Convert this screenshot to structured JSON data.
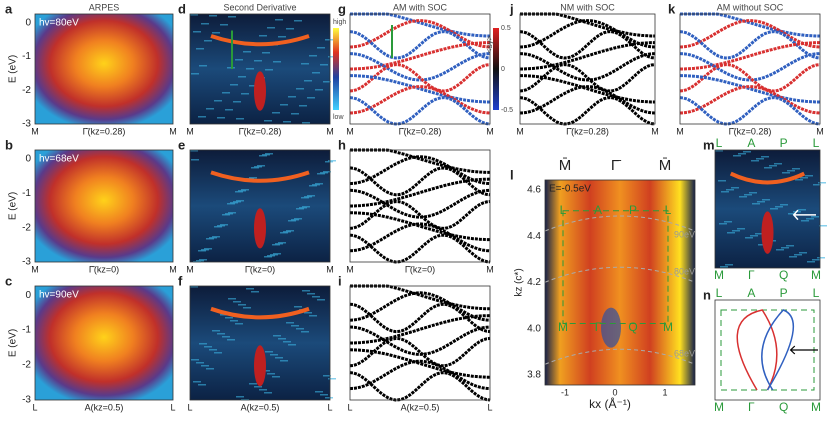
{
  "panels": [
    {
      "letter": "a",
      "title": "ARPES",
      "inset": "hv=80eV",
      "ylabel": "E (eV)",
      "yticks": [
        "0",
        "-1",
        "-2",
        "-3"
      ],
      "xticks": [
        "M",
        "Γ̄(kz=0.28)",
        "M"
      ]
    },
    {
      "letter": "b",
      "inset": "hv=68eV",
      "ylabel": "E (eV)",
      "yticks": [
        "0",
        "-1",
        "-2",
        "-3"
      ],
      "xticks": [
        "M",
        "Γ̄(kz=0)",
        "M"
      ]
    },
    {
      "letter": "c",
      "inset": "hv=90eV",
      "ylabel": "E (eV)",
      "yticks": [
        "0",
        "-1",
        "-2",
        "-3"
      ],
      "xticks": [
        "L",
        "A(kz=0.5)",
        "L"
      ]
    },
    {
      "letter": "d",
      "title": "Second Derivative",
      "colorbar": [
        "high",
        "low"
      ],
      "xticks": [
        "M",
        "Γ̄(kz=0.28)",
        "M"
      ]
    },
    {
      "letter": "e",
      "xticks": [
        "M",
        "Γ̄(kz=0)",
        "M"
      ]
    },
    {
      "letter": "f",
      "xticks": [
        "L",
        "A(kz=0.5)",
        "L"
      ]
    },
    {
      "letter": "g",
      "title": "AM with SOC",
      "colorbar_title": "<sy>",
      "colorbar": [
        "0.5",
        "0",
        "-0.5"
      ],
      "xticks": [
        "M",
        "Γ̄(kz=0.28)",
        "M"
      ]
    },
    {
      "letter": "h",
      "xticks": [
        "M",
        "Γ̄(kz=0)",
        "M"
      ]
    },
    {
      "letter": "i",
      "xticks": [
        "L",
        "A(kz=0.5)",
        "L"
      ]
    },
    {
      "letter": "j",
      "title": "NM with SOC",
      "xticks": [
        "M",
        "Γ̄(kz=0.28)",
        "M"
      ]
    },
    {
      "letter": "k",
      "title": "AM without SOC",
      "xticks": [
        "M",
        "Γ̄(kz=0.28)",
        "M"
      ]
    },
    {
      "letter": "l",
      "top": [
        "M̄",
        "Γ̄",
        "M̄"
      ],
      "inset": "E=-0.5eV",
      "ylabel": "kz (c*)",
      "xlabel": "kx (Å⁻¹)",
      "yticks": [
        "4.6",
        "4.4",
        "4.2",
        "4.0",
        "3.8"
      ],
      "xticks": [
        "-1",
        "0",
        "1"
      ],
      "upper_points": [
        "L",
        "A",
        "P",
        "L"
      ],
      "lower_points": [
        "M",
        "Γ",
        "Q",
        "M"
      ],
      "energies": [
        "90eV",
        "80eV",
        "68eV"
      ]
    },
    {
      "letter": "m",
      "upper_points": [
        "L",
        "A",
        "P",
        "L"
      ],
      "lower_points": [
        "M",
        "Γ",
        "Q",
        "M"
      ]
    },
    {
      "letter": "n",
      "upper_points": [
        "L",
        "A",
        "P",
        "L"
      ],
      "lower_points": [
        "M",
        "Γ",
        "Q",
        "M"
      ]
    }
  ]
}
